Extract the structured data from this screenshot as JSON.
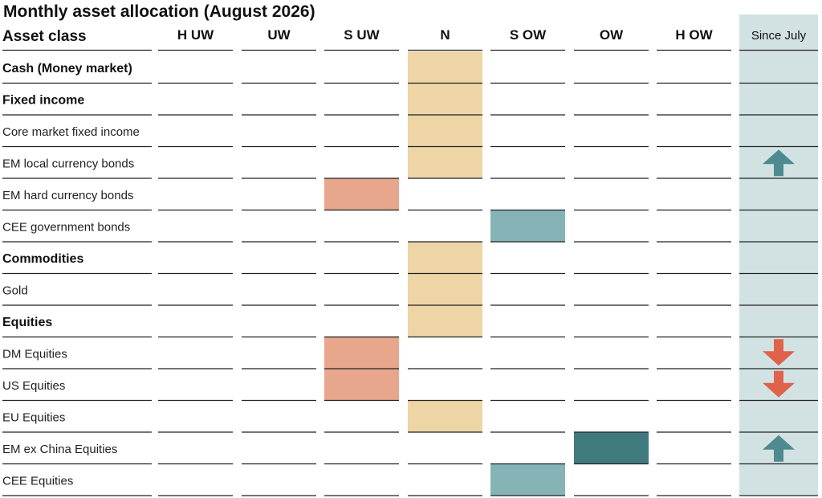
{
  "chart_data": {
    "type": "table",
    "title": "Monthly asset allocation (August 2026)",
    "row_header": "Asset class",
    "columns": [
      "H UW",
      "UW",
      "S UW",
      "N",
      "S OW",
      "OW",
      "H OW"
    ],
    "change_column": "Since July",
    "rows": [
      {
        "label": "Cash (Money market)",
        "bold": true,
        "position": "N",
        "change": ""
      },
      {
        "label": "Fixed income",
        "bold": true,
        "position": "N",
        "change": ""
      },
      {
        "label": "Core market fixed income",
        "bold": false,
        "position": "N",
        "change": ""
      },
      {
        "label": "EM local currency bonds",
        "bold": false,
        "position": "N",
        "change": "up"
      },
      {
        "label": "EM hard currency bonds",
        "bold": false,
        "position": "S UW",
        "change": ""
      },
      {
        "label": "CEE government bonds",
        "bold": false,
        "position": "S OW",
        "change": ""
      },
      {
        "label": "Commodities",
        "bold": true,
        "position": "N",
        "change": ""
      },
      {
        "label": "Gold",
        "bold": false,
        "position": "N",
        "change": ""
      },
      {
        "label": "Equities",
        "bold": true,
        "position": "N",
        "change": ""
      },
      {
        "label": "DM Equities",
        "bold": false,
        "position": "S UW",
        "change": "down"
      },
      {
        "label": "US Equities",
        "bold": false,
        "position": "S UW",
        "change": "down"
      },
      {
        "label": "EU Equities",
        "bold": false,
        "position": "N",
        "change": ""
      },
      {
        "label": "EM ex China Equities",
        "bold": false,
        "position": "OW",
        "change": "up"
      },
      {
        "label": "CEE Equities",
        "bold": false,
        "position": "S OW",
        "change": ""
      }
    ]
  },
  "colors": {
    "underweight_slight": "#E8A68C",
    "neutral": "#EDD5A6",
    "overweight_slight": "#86B3B6",
    "overweight": "#3F7B7E",
    "since_column_bg": "#D2E2E3",
    "arrow_up": "#4E8A8F",
    "arrow_down": "#E0624A",
    "gridline": "#222222"
  }
}
